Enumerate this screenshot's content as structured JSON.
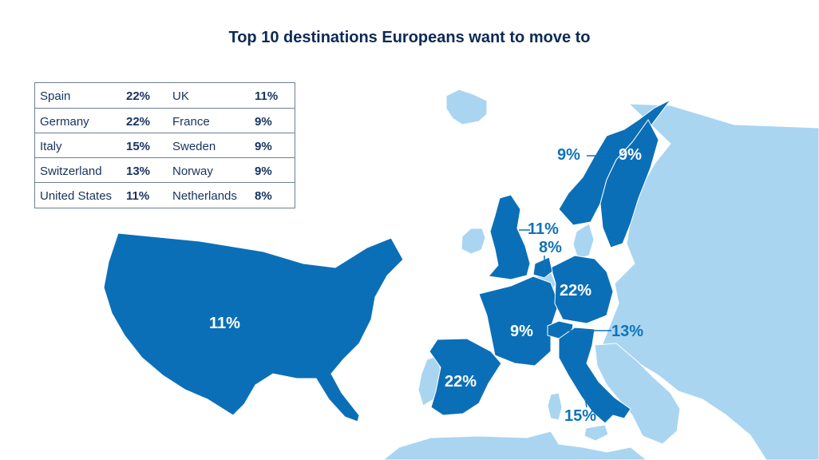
{
  "title": "Top 10 destinations Europeans want to move to",
  "colors": {
    "highlight": "#0b6fb8",
    "land": "#a9d5f1",
    "legend_border": "#6f7f97",
    "title": "#0d2a55",
    "label_outside": "#0f73b9"
  },
  "legend": [
    {
      "left_name": "Spain",
      "left_value": "22%",
      "right_name": "UK",
      "right_value": "11%"
    },
    {
      "left_name": "Germany",
      "left_value": "22%",
      "right_name": "France",
      "right_value": "9%"
    },
    {
      "left_name": "Italy",
      "left_value": "15%",
      "right_name": "Sweden",
      "right_value": "9%"
    },
    {
      "left_name": "Switzerland",
      "left_value": "13%",
      "right_name": "Norway",
      "right_value": "9%"
    },
    {
      "left_name": "United States",
      "left_value": "11%",
      "right_name": "Netherlands",
      "right_value": "8%"
    }
  ],
  "map_labels": {
    "usa": "11%",
    "spain": "22%",
    "france": "9%",
    "germany": "22%",
    "italy": "15%",
    "switzerland": "13%",
    "uk": "11%",
    "netherlands": "8%",
    "sweden": "9%",
    "norway": "9%"
  }
}
